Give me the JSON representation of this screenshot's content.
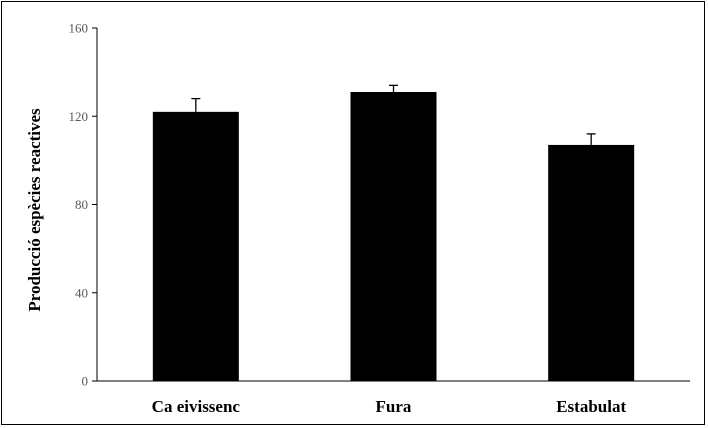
{
  "chart_data": {
    "type": "bar",
    "title": "",
    "xlabel": "",
    "ylabel": "Producció espècies reactives",
    "categories": [
      "Ca eivissenc",
      "Fura",
      "Estabulat"
    ],
    "values": [
      122,
      131,
      107
    ],
    "error": [
      6,
      3,
      5
    ],
    "ylim": [
      0,
      160
    ],
    "yticks": [
      "0",
      "40",
      "80",
      "120",
      "160"
    ],
    "bar_color": "#000000",
    "grid": false,
    "legend": "none"
  }
}
